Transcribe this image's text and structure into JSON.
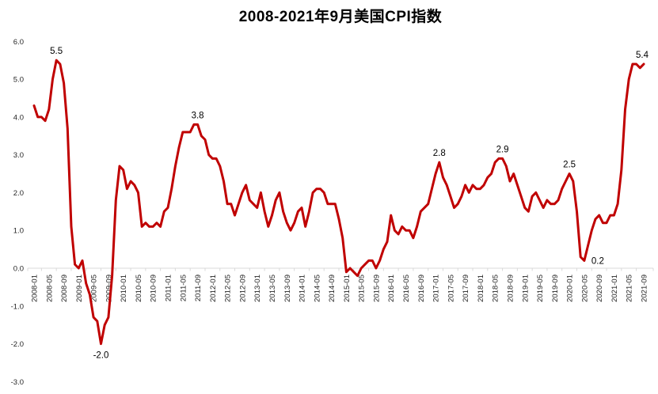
{
  "chart_data": {
    "type": "line",
    "title": "2008-2021年9月美国CPI指数",
    "x_start": "2008-01",
    "x_end": "2021-09",
    "x_tick_interval_months": 4,
    "x_tick_labels": [
      "2008-01",
      "2008-05",
      "2008-09",
      "2009-01",
      "2009-05",
      "2009-09",
      "2010-01",
      "2010-05",
      "2010-09",
      "2011-01",
      "2011-05",
      "2011-09",
      "2012-01",
      "2012-05",
      "2012-09",
      "2013-01",
      "2013-05",
      "2013-09",
      "2014-01",
      "2014-05",
      "2014-09",
      "2015-01",
      "2015-05",
      "2015-09",
      "2016-01",
      "2016-05",
      "2016-09",
      "2017-01",
      "2017-05",
      "2017-09",
      "2018-01",
      "2018-05",
      "2018-09",
      "2019-01",
      "2019-05",
      "2019-09",
      "2020-01",
      "2020-05",
      "2020-09",
      "2021-01",
      "2021-05",
      "2021-09"
    ],
    "y_tick_labels": [
      "6.0",
      "5.0",
      "4.0",
      "3.0",
      "2.0",
      "1.0",
      "0.0",
      "-1.0",
      "-2.0",
      "-3.0"
    ],
    "y_tick_values": [
      6.0,
      5.0,
      4.0,
      3.0,
      2.0,
      1.0,
      0.0,
      -1.0,
      -2.0,
      -3.0
    ],
    "ylim": [
      -3.0,
      6.0
    ],
    "grid": false,
    "legend": "none",
    "line_color": "#C00000",
    "axis_color": "#D9D9D9",
    "values": [
      4.3,
      4.0,
      4.0,
      3.9,
      4.2,
      5.0,
      5.5,
      5.4,
      4.9,
      3.7,
      1.1,
      0.1,
      0.0,
      0.2,
      -0.4,
      -0.7,
      -1.3,
      -1.4,
      -2.0,
      -1.5,
      -1.3,
      -0.2,
      1.8,
      2.7,
      2.6,
      2.1,
      2.3,
      2.2,
      2.0,
      1.1,
      1.2,
      1.1,
      1.1,
      1.2,
      1.1,
      1.5,
      1.6,
      2.1,
      2.7,
      3.2,
      3.6,
      3.6,
      3.6,
      3.8,
      3.8,
      3.5,
      3.4,
      3.0,
      2.9,
      2.9,
      2.7,
      2.3,
      1.7,
      1.7,
      1.4,
      1.7,
      2.0,
      2.2,
      1.8,
      1.7,
      1.6,
      2.0,
      1.5,
      1.1,
      1.4,
      1.8,
      2.0,
      1.5,
      1.2,
      1.0,
      1.2,
      1.5,
      1.6,
      1.1,
      1.5,
      2.0,
      2.1,
      2.1,
      2.0,
      1.7,
      1.7,
      1.7,
      1.3,
      0.8,
      -0.1,
      0.0,
      -0.1,
      -0.2,
      0.0,
      0.1,
      0.2,
      0.2,
      0.0,
      0.2,
      0.5,
      0.7,
      1.4,
      1.0,
      0.9,
      1.1,
      1.0,
      1.0,
      0.8,
      1.1,
      1.5,
      1.6,
      1.7,
      2.1,
      2.5,
      2.8,
      2.4,
      2.2,
      1.9,
      1.6,
      1.7,
      1.9,
      2.2,
      2.0,
      2.2,
      2.1,
      2.1,
      2.2,
      2.4,
      2.5,
      2.8,
      2.9,
      2.9,
      2.7,
      2.3,
      2.5,
      2.2,
      1.9,
      1.6,
      1.5,
      1.9,
      2.0,
      1.8,
      1.6,
      1.8,
      1.7,
      1.7,
      1.8,
      2.1,
      2.3,
      2.5,
      2.3,
      1.5,
      0.3,
      0.2,
      0.6,
      1.0,
      1.3,
      1.4,
      1.2,
      1.2,
      1.4,
      1.4,
      1.7,
      2.6,
      4.2,
      5.0,
      5.4,
      5.4,
      5.3,
      5.4
    ],
    "annotations": [
      {
        "text": "5.5",
        "index": 6,
        "placement": "above"
      },
      {
        "text": "-2.0",
        "index": 18,
        "placement": "below"
      },
      {
        "text": "3.8",
        "index": 44,
        "placement": "above"
      },
      {
        "text": "2.8",
        "index": 109,
        "placement": "above"
      },
      {
        "text": "2.9",
        "index": 126,
        "placement": "above"
      },
      {
        "text": "2.5",
        "index": 144,
        "placement": "above"
      },
      {
        "text": "0.2",
        "index": 148,
        "placement": "right"
      },
      {
        "text": "5.4",
        "index": 164,
        "placement": "above"
      }
    ]
  }
}
